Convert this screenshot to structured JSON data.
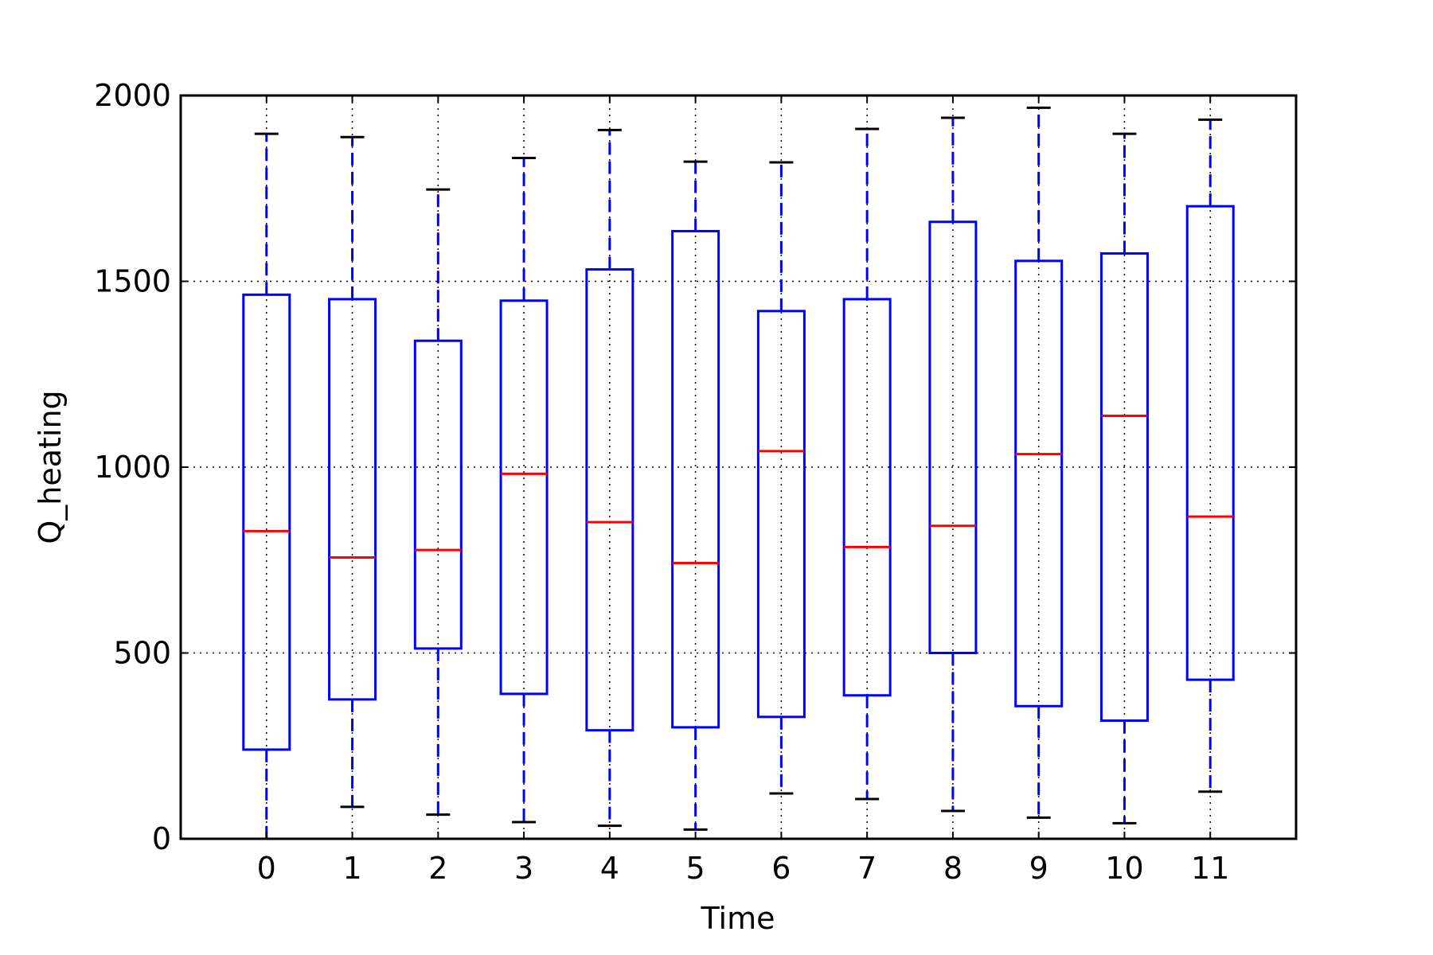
{
  "chart_data": {
    "type": "box",
    "title": "",
    "xlabel": "Time",
    "ylabel": "Q_heating",
    "ylim": [
      0,
      2000
    ],
    "yticks": [
      0,
      500,
      1000,
      1500,
      2000
    ],
    "categories": [
      "0",
      "1",
      "2",
      "3",
      "4",
      "5",
      "6",
      "7",
      "8",
      "9",
      "10",
      "11"
    ],
    "grid": true,
    "colors": {
      "box": "#0000ff",
      "median": "#ff0000",
      "cap": "#000000",
      "grid": "#000000"
    },
    "boxes": [
      {
        "category": "0",
        "whisker_low": 0,
        "q1": 240,
        "median": 828,
        "q3": 1464,
        "whisker_high": 1897
      },
      {
        "category": "1",
        "whisker_low": 86,
        "q1": 375,
        "median": 757,
        "q3": 1452,
        "whisker_high": 1888
      },
      {
        "category": "2",
        "whisker_low": 65,
        "q1": 512,
        "median": 777,
        "q3": 1340,
        "whisker_high": 1747
      },
      {
        "category": "3",
        "whisker_low": 45,
        "q1": 390,
        "median": 982,
        "q3": 1448,
        "whisker_high": 1832
      },
      {
        "category": "4",
        "whisker_low": 35,
        "q1": 292,
        "median": 852,
        "q3": 1532,
        "whisker_high": 1907
      },
      {
        "category": "5",
        "whisker_low": 25,
        "q1": 300,
        "median": 742,
        "q3": 1635,
        "whisker_high": 1822
      },
      {
        "category": "6",
        "whisker_low": 122,
        "q1": 328,
        "median": 1043,
        "q3": 1420,
        "whisker_high": 1820
      },
      {
        "category": "7",
        "whisker_low": 107,
        "q1": 386,
        "median": 785,
        "q3": 1452,
        "whisker_high": 1910
      },
      {
        "category": "8",
        "whisker_low": 75,
        "q1": 500,
        "median": 842,
        "q3": 1660,
        "whisker_high": 1940
      },
      {
        "category": "9",
        "whisker_low": 57,
        "q1": 357,
        "median": 1035,
        "q3": 1555,
        "whisker_high": 1967
      },
      {
        "category": "10",
        "whisker_low": 42,
        "q1": 318,
        "median": 1138,
        "q3": 1575,
        "whisker_high": 1897
      },
      {
        "category": "11",
        "whisker_low": 127,
        "q1": 428,
        "median": 867,
        "q3": 1702,
        "whisker_high": 1935
      }
    ]
  }
}
